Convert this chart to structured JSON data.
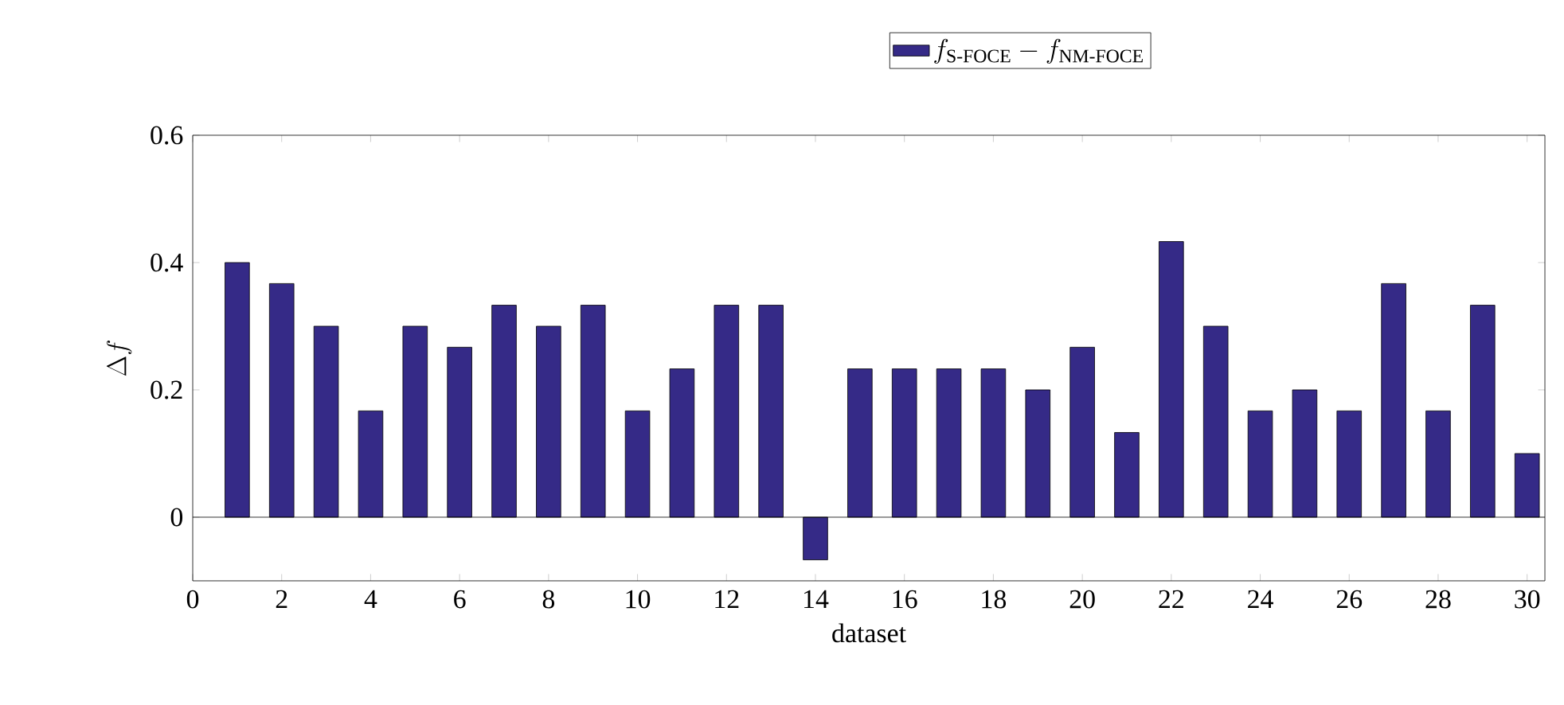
{
  "chart_data": {
    "type": "bar",
    "xlabel": "dataset",
    "ylabel": "\\Delta f",
    "x": [
      1,
      2,
      3,
      4,
      5,
      6,
      7,
      8,
      9,
      10,
      11,
      12,
      13,
      14,
      15,
      16,
      17,
      18,
      19,
      20,
      21,
      22,
      23,
      24,
      25,
      26,
      27,
      28,
      29,
      30
    ],
    "series": [
      {
        "name": "f_{\\textrm{S-FOCE}} - f_{\\textrm{NM-FOCE}}",
        "color": "#352a87",
        "values": [
          0.4,
          0.367,
          0.3,
          0.167,
          0.3,
          0.267,
          0.333,
          0.3,
          0.333,
          0.167,
          0.233,
          0.333,
          0.333,
          -0.067,
          0.233,
          0.233,
          0.233,
          0.233,
          0.2,
          0.267,
          0.133,
          0.433,
          0.3,
          0.167,
          0.2,
          0.167,
          0.367,
          0.167,
          0.333,
          0.1
        ]
      }
    ],
    "xlim": [
      0,
      30.4
    ],
    "ylim": [
      -0.1,
      0.6
    ],
    "xticks": [
      0,
      2,
      4,
      6,
      8,
      10,
      12,
      14,
      16,
      18,
      20,
      22,
      24,
      26,
      28,
      30
    ],
    "yticks": [
      0,
      0.2,
      0.4,
      0.6
    ],
    "ref_lines": [
      {
        "axis": "y",
        "value": 0
      }
    ],
    "legend": "top",
    "grid": false
  }
}
